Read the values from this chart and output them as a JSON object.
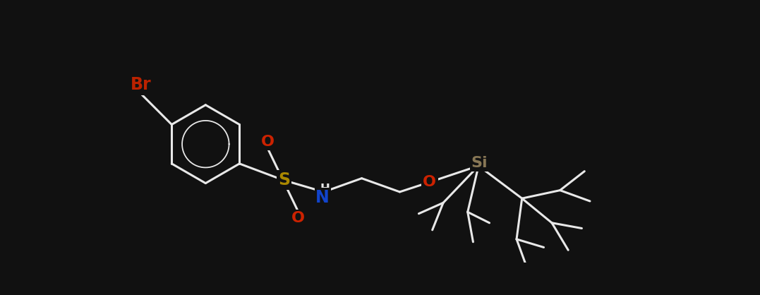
{
  "bg_color": "#111111",
  "bond_color": "#111111",
  "white_bond": "#e8e8e8",
  "atom_colors": {
    "Br": "#bb2200",
    "O": "#cc2200",
    "S": "#aa8800",
    "N": "#1144cc",
    "Si": "#887755",
    "H": "#e8e8e8"
  },
  "figsize": [
    10.77,
    4.18
  ],
  "dpi": 100
}
